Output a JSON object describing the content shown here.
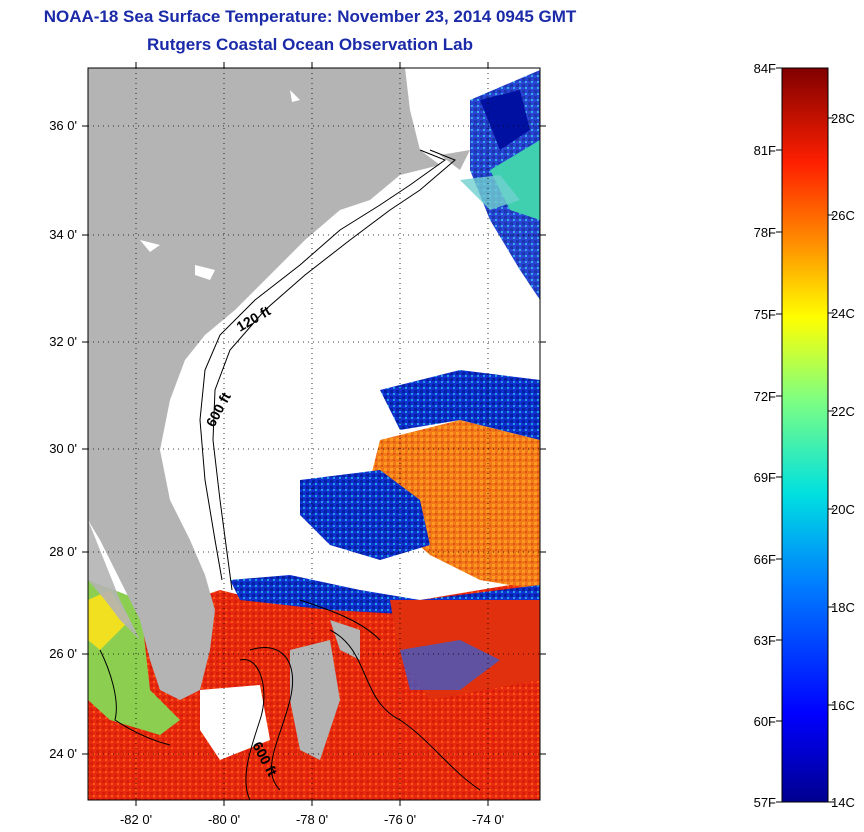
{
  "title_line1": "NOAA-18 Sea Surface Temperature:  November 23, 2014 0945 GMT",
  "title_line2": "Rutgers Coastal Ocean Observation Lab",
  "lat_ticks": [
    "36 0'",
    "34 0'",
    "32 0'",
    "30 0'",
    "28 0'",
    "26 0'",
    "24 0'"
  ],
  "lon_ticks": [
    "-82 0'",
    "-80 0'",
    "-78 0'",
    "-76 0'",
    "-74 0'"
  ],
  "contours": {
    "shelf_120": "120 ft",
    "shelf_600": "600 ft",
    "south_600": "600 ft"
  },
  "colorbar": {
    "fahrenheit": [
      "84F",
      "81F",
      "78F",
      "75F",
      "72F",
      "69F",
      "66F",
      "63F",
      "60F",
      "57F"
    ],
    "celsius": [
      "28C",
      "26C",
      "24C",
      "22C",
      "20C",
      "18C",
      "16C",
      "14C"
    ]
  },
  "colors": {
    "land": "#b4b4b4",
    "no_data": "#ffffff",
    "title": "#1a2aa8"
  }
}
